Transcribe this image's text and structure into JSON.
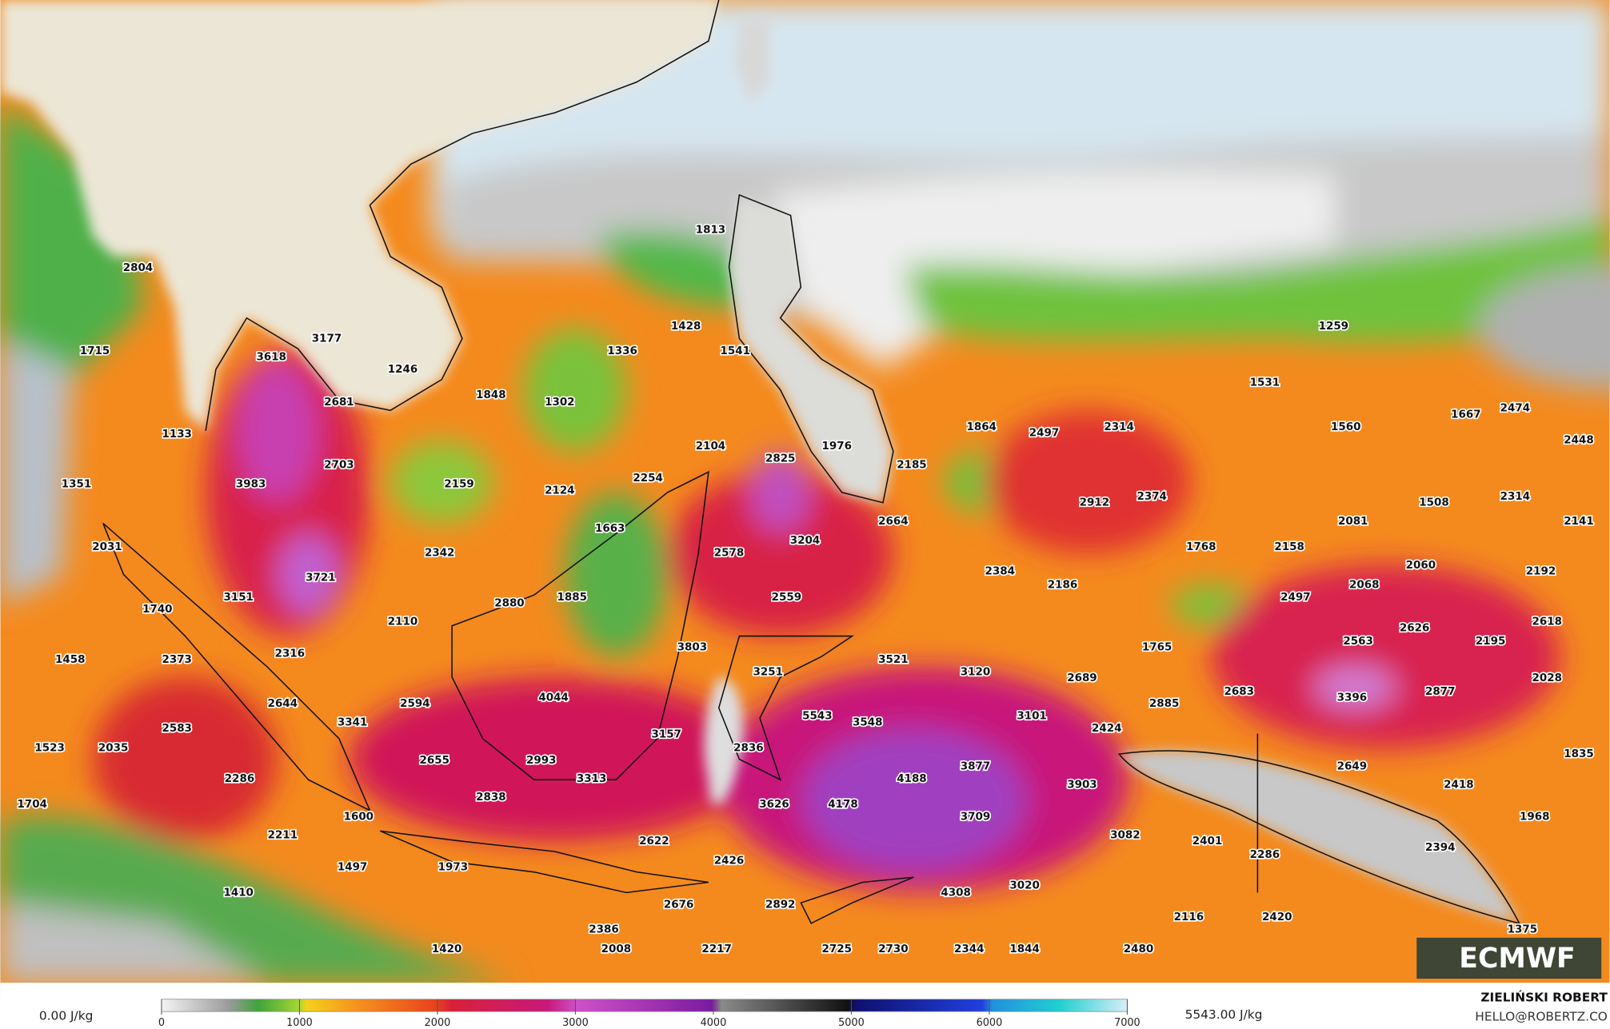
{
  "map": {
    "labels": [
      2804,
      1715,
      3618,
      3177,
      1246,
      2681,
      1848,
      1302,
      1336,
      1428,
      1813,
      1541,
      1133,
      1351,
      3983,
      2703,
      2159,
      2124,
      2254,
      2104,
      2825,
      1976,
      2185,
      1864,
      2497,
      2314,
      1531,
      1259,
      1560,
      1667,
      2474,
      2448,
      2031,
      3721,
      2342,
      1663,
      2578,
      3204,
      2664,
      2912,
      2374,
      1508,
      2314,
      2081,
      2141,
      3151,
      1740,
      2880,
      1885,
      2559,
      2384,
      2186,
      1768,
      2158,
      2060,
      2192,
      2068,
      2497,
      2110,
      2316,
      2373,
      1458,
      3803,
      3521,
      1765,
      2563,
      2626,
      2195,
      2618,
      3251,
      3120,
      2689,
      2683,
      3396,
      2877,
      2028,
      2644,
      2594,
      4044,
      5543,
      3548,
      3101,
      2885,
      2424,
      3341,
      3157,
      2583,
      1523,
      2035,
      2655,
      2993,
      2836,
      3877,
      2649,
      1835,
      3313,
      4188,
      3903,
      2418,
      2286,
      2838,
      3626,
      4178,
      3709,
      1968,
      1704,
      1600,
      2211,
      2622,
      3082,
      2401,
      2286,
      2394,
      2426,
      1497,
      1973,
      3020,
      4308,
      1410,
      2676,
      2892,
      2116,
      2420,
      2386,
      1375,
      1420,
      2008,
      2217,
      2725,
      2730,
      2344,
      1844,
      2480
    ]
  },
  "legend": {
    "min_label": "0.00 J/kg",
    "max_label": "5543.00 J/kg",
    "ticks": [
      0,
      1000,
      2000,
      3000,
      4000,
      5000,
      6000,
      7000
    ]
  },
  "credit": {
    "author": "ZIELIŃSKI ROBERT",
    "email": "HELLO@ROBERTZ.CO"
  },
  "logo": "ECMWF"
}
